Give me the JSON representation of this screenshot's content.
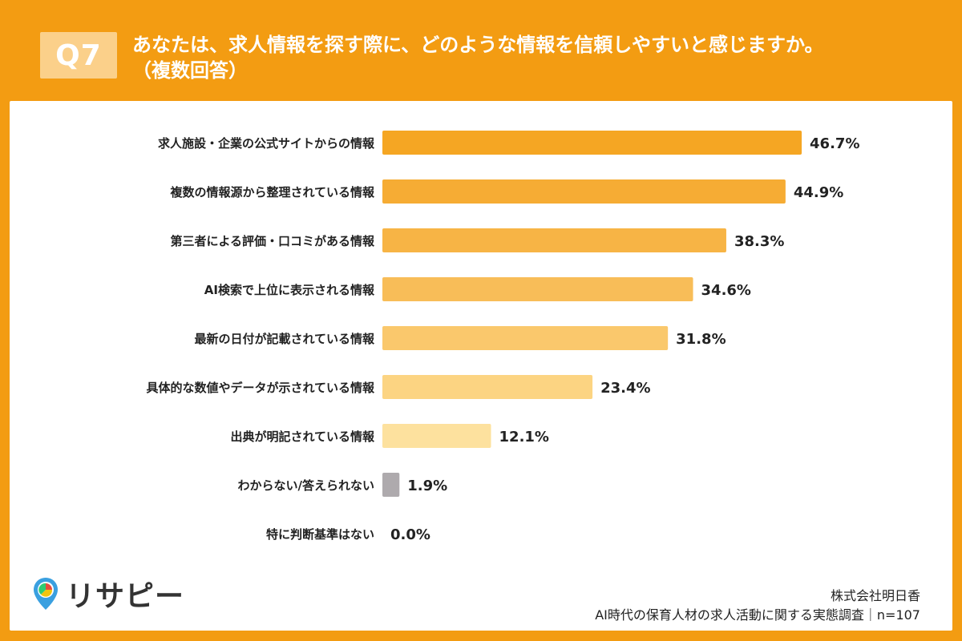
{
  "header": {
    "badge": "Q7",
    "title": "あなたは、求人情報を探す際に、どのような情報を信頼しやすいと感じますか。",
    "subtitle": "（複数回答）"
  },
  "chart_data": {
    "type": "bar",
    "orientation": "horizontal",
    "categories": [
      "求人施設・企業の公式サイトからの情報",
      "複数の情報源から整理されている情報",
      "第三者による評価・口コミがある情報",
      "AI検索で上位に表示される情報",
      "最新の日付が記載されている情報",
      "具体的な数値やデータが示されている情報",
      "出典が明記されている情報",
      "わからない/答えられない",
      "特に判断基準はない"
    ],
    "values": [
      46.7,
      44.9,
      38.3,
      34.6,
      31.8,
      23.4,
      12.1,
      1.9,
      0.0
    ],
    "value_labels": [
      "46.7%",
      "44.9%",
      "38.3%",
      "34.6%",
      "31.8%",
      "23.4%",
      "12.1%",
      "1.9%",
      "0.0%"
    ],
    "colors": [
      "#f5a623",
      "#f6ac34",
      "#f7b445",
      "#f8bd58",
      "#fac86c",
      "#fcd482",
      "#fde19e",
      "#aeaaad",
      "#aeaaad"
    ],
    "xlim": [
      0,
      50
    ]
  },
  "footer": {
    "logo_text": "リサピー",
    "company": "株式会社明日香",
    "survey": "AI時代の保育人材の求人活動に関する実態調査｜n=107"
  }
}
